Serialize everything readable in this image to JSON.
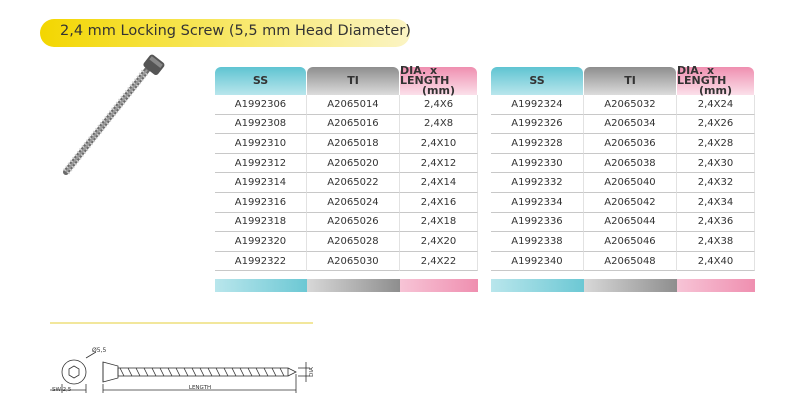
{
  "title": "2,4 mm Locking Screw (5,5 mm Head Diameter)",
  "tables": [
    {
      "headers": [
        "SS",
        "TI",
        "DIA. x LENGTH"
      ],
      "unit": "(mm)",
      "rows": [
        [
          "A1992306",
          "A2065014",
          "2,4X6"
        ],
        [
          "A1992308",
          "A2065016",
          "2,4X8"
        ],
        [
          "A1992310",
          "A2065018",
          "2,4X10"
        ],
        [
          "A1992312",
          "A2065020",
          "2,4X12"
        ],
        [
          "A1992314",
          "A2065022",
          "2,4X14"
        ],
        [
          "A1992316",
          "A2065024",
          "2,4X16"
        ],
        [
          "A1992318",
          "A2065026",
          "2,4X18"
        ],
        [
          "A1992320",
          "A2065028",
          "2,4X20"
        ],
        [
          "A1992322",
          "A2065030",
          "2,4X22"
        ]
      ]
    },
    {
      "headers": [
        "SS",
        "TI",
        "DIA. x LENGTH"
      ],
      "unit": "(mm)",
      "rows": [
        [
          "A1992324",
          "A2065032",
          "2,4X24"
        ],
        [
          "A1992326",
          "A2065034",
          "2,4X26"
        ],
        [
          "A1992328",
          "A2065036",
          "2,4X28"
        ],
        [
          "A1992330",
          "A2065038",
          "2,4X30"
        ],
        [
          "A1992332",
          "A2065040",
          "2,4X32"
        ],
        [
          "A1992334",
          "A2065042",
          "2,4X34"
        ],
        [
          "A1992336",
          "A2065044",
          "2,4X36"
        ],
        [
          "A1992338",
          "A2065046",
          "2,4X38"
        ],
        [
          "A1992340",
          "A2065048",
          "2,4X40"
        ]
      ]
    }
  ],
  "drawing": {
    "head_diameter": "Ø5,5",
    "socket": "SW 2,5",
    "length": "LENGTH",
    "diameter": "DIA"
  }
}
